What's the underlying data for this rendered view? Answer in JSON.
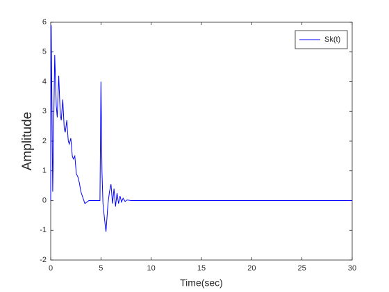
{
  "chart_data": {
    "type": "line",
    "xlabel": "Time(sec)",
    "ylabel": "Amplitude",
    "x": [
      0,
      0.05,
      0.2,
      0.4,
      0.55,
      0.65,
      0.8,
      0.95,
      1.05,
      1.2,
      1.35,
      1.45,
      1.6,
      1.75,
      1.85,
      2.0,
      2.15,
      2.25,
      2.4,
      2.55,
      2.7,
      2.85,
      3.0,
      3.2,
      3.4,
      3.6,
      3.8,
      4.5,
      4.9,
      5.0,
      5.1,
      5.2,
      5.35,
      5.5,
      5.7,
      5.85,
      6.0,
      6.15,
      6.3,
      6.45,
      6.6,
      6.75,
      6.9,
      7.05,
      7.2,
      7.4,
      7.6,
      8.0,
      10,
      15,
      20,
      25,
      30
    ],
    "series": [
      {
        "name": "Sk(t)",
        "color": "#0000ff",
        "values": [
          0,
          5.9,
          0.3,
          4.9,
          3.2,
          2.8,
          4.2,
          2.9,
          2.7,
          3.4,
          2.4,
          2.3,
          2.7,
          2.0,
          1.9,
          2.1,
          1.5,
          1.4,
          1.5,
          0.9,
          0.8,
          0.6,
          0.3,
          0.1,
          -0.1,
          -0.05,
          0,
          0,
          0,
          4.0,
          1.0,
          -0.1,
          -0.6,
          -1.05,
          -0.1,
          0.3,
          0.55,
          -0.1,
          0.4,
          -0.2,
          0.25,
          -0.1,
          0.15,
          -0.05,
          0.08,
          -0.03,
          0.02,
          0,
          0,
          0,
          0,
          0,
          0
        ]
      }
    ],
    "xlim": [
      0,
      30
    ],
    "xticks": [
      0,
      5,
      10,
      15,
      20,
      25,
      30
    ],
    "ylim": [
      -2,
      6
    ],
    "yticks": [
      -2,
      -1,
      0,
      1,
      2,
      3,
      4,
      5,
      6
    ],
    "grid": false,
    "legend": "northeast"
  }
}
